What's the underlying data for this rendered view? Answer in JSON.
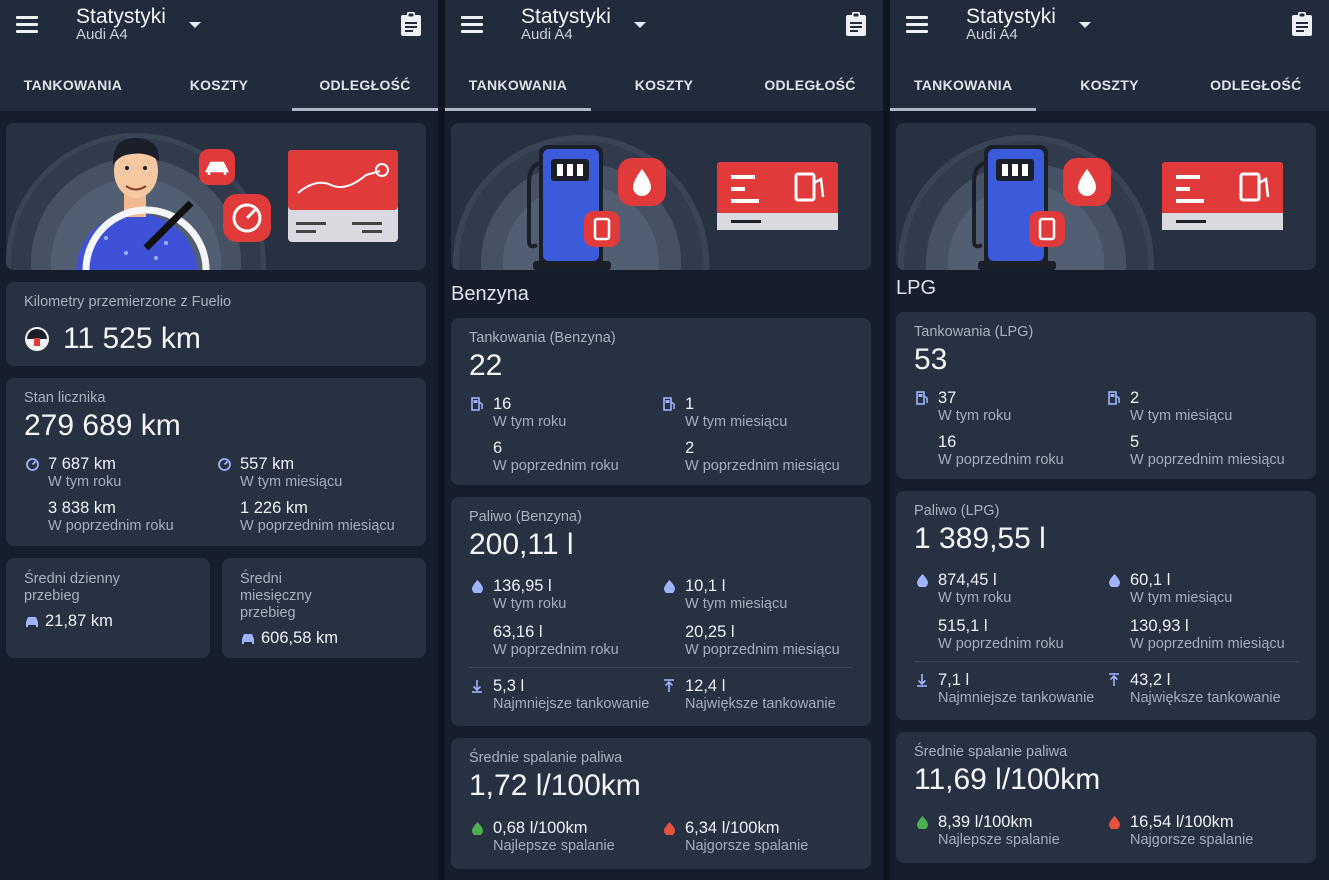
{
  "appbar": {
    "title": "Statystyki",
    "subtitle": "Audi A4",
    "tabs": [
      "TANKOWANIA",
      "KOSZTY",
      "ODLEGŁOŚĆ"
    ]
  },
  "distance": {
    "fuelio_label": "Kilometry przemierzone z Fuelio",
    "fuelio_value": "11 525 km",
    "odometer_label": "Stan licznika",
    "odometer_value": "279 689 km",
    "year_val": "7 687 km",
    "year_sub": "W tym roku",
    "month_val": "557 km",
    "month_sub": "W tym miesiącu",
    "prev_year_val": "3 838 km",
    "prev_year_sub": "W poprzednim roku",
    "prev_month_val": "1 226 km",
    "prev_month_sub": "W poprzednim miesiącu",
    "daily_label_1": "Średni dzienny",
    "daily_label_2": "przebieg",
    "daily_value": "21,87 km",
    "monthly_label_1": "Średni",
    "monthly_label_2": "miesięczny",
    "monthly_label_3": "przebieg",
    "monthly_value": "606,58 km"
  },
  "benzyna": {
    "section": "Benzyna",
    "fills_label": "Tankowania (Benzyna)",
    "fills_total": "22",
    "fills_year": "16",
    "fills_month": "1",
    "fills_prev_year": "6",
    "fills_prev_month": "2",
    "fuel_label": "Paliwo (Benzyna)",
    "fuel_total": "200,11 l",
    "fuel_year": "136,95 l",
    "fuel_month": "10,1 l",
    "fuel_prev_year": "63,16 l",
    "fuel_prev_month": "20,25 l",
    "min_fill": "5,3 l",
    "max_fill": "12,4 l",
    "avg_label": "Średnie spalanie paliwa",
    "avg_value": "1,72 l/100km",
    "best": "0,68 l/100km",
    "worst": "6,34 l/100km"
  },
  "lpg": {
    "section": "LPG",
    "fills_label": "Tankowania (LPG)",
    "fills_total": "53",
    "fills_year": "37",
    "fills_month": "2",
    "fills_prev_year": "16",
    "fills_prev_month": "5",
    "fuel_label": "Paliwo (LPG)",
    "fuel_total": "1 389,55 l",
    "fuel_year": "874,45 l",
    "fuel_month": "60,1 l",
    "fuel_prev_year": "515,1 l",
    "fuel_prev_month": "130,93 l",
    "min_fill": "7,1 l",
    "max_fill": "43,2 l",
    "avg_label": "Średnie spalanie paliwa",
    "avg_value": "11,69 l/100km",
    "best": "8,39 l/100km",
    "worst": "16,54 l/100km"
  },
  "labels": {
    "this_year": "W tym roku",
    "this_month": "W tym miesiącu",
    "prev_year": "W poprzednim roku",
    "prev_month": "W poprzednim miesiącu",
    "min_fill": "Najmniejsze tankowanie",
    "max_fill": "Największe tankowanie",
    "best": "Najlepsze spalanie",
    "worst": "Najgorsze spalanie"
  },
  "colors": {
    "background": "#161d2c",
    "appbar": "#222b3b",
    "card": "#283142",
    "accent_red": "#e03a3a",
    "pump_blue": "#3b5bdb",
    "best_green": "#4caf50",
    "worst_red": "#e5533d"
  }
}
